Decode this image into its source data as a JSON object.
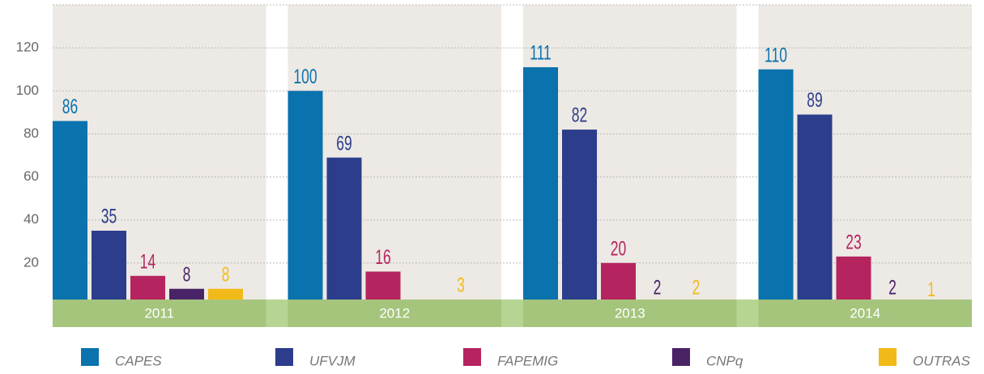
{
  "chart_data": {
    "type": "bar",
    "categories": [
      "2011",
      "2012",
      "2013",
      "2014"
    ],
    "series": [
      {
        "name": "CAPES",
        "color": "#0a72ad",
        "values": [
          86,
          100,
          111,
          110
        ]
      },
      {
        "name": "UFVJM",
        "color": "#2b3d8b",
        "values": [
          35,
          69,
          82,
          89
        ]
      },
      {
        "name": "FAPEMIG",
        "color": "#b6245f",
        "values": [
          14,
          16,
          20,
          23
        ]
      },
      {
        "name": "CNPq",
        "color": "#4a2367",
        "values": [
          8,
          null,
          2,
          2
        ]
      },
      {
        "name": "OUTRAS",
        "color": "#f2ba18",
        "values": [
          8,
          3,
          2,
          1
        ]
      }
    ],
    "ylim": [
      0,
      140
    ],
    "yticks": [
      20,
      40,
      60,
      80,
      100,
      120
    ],
    "grid": true
  }
}
